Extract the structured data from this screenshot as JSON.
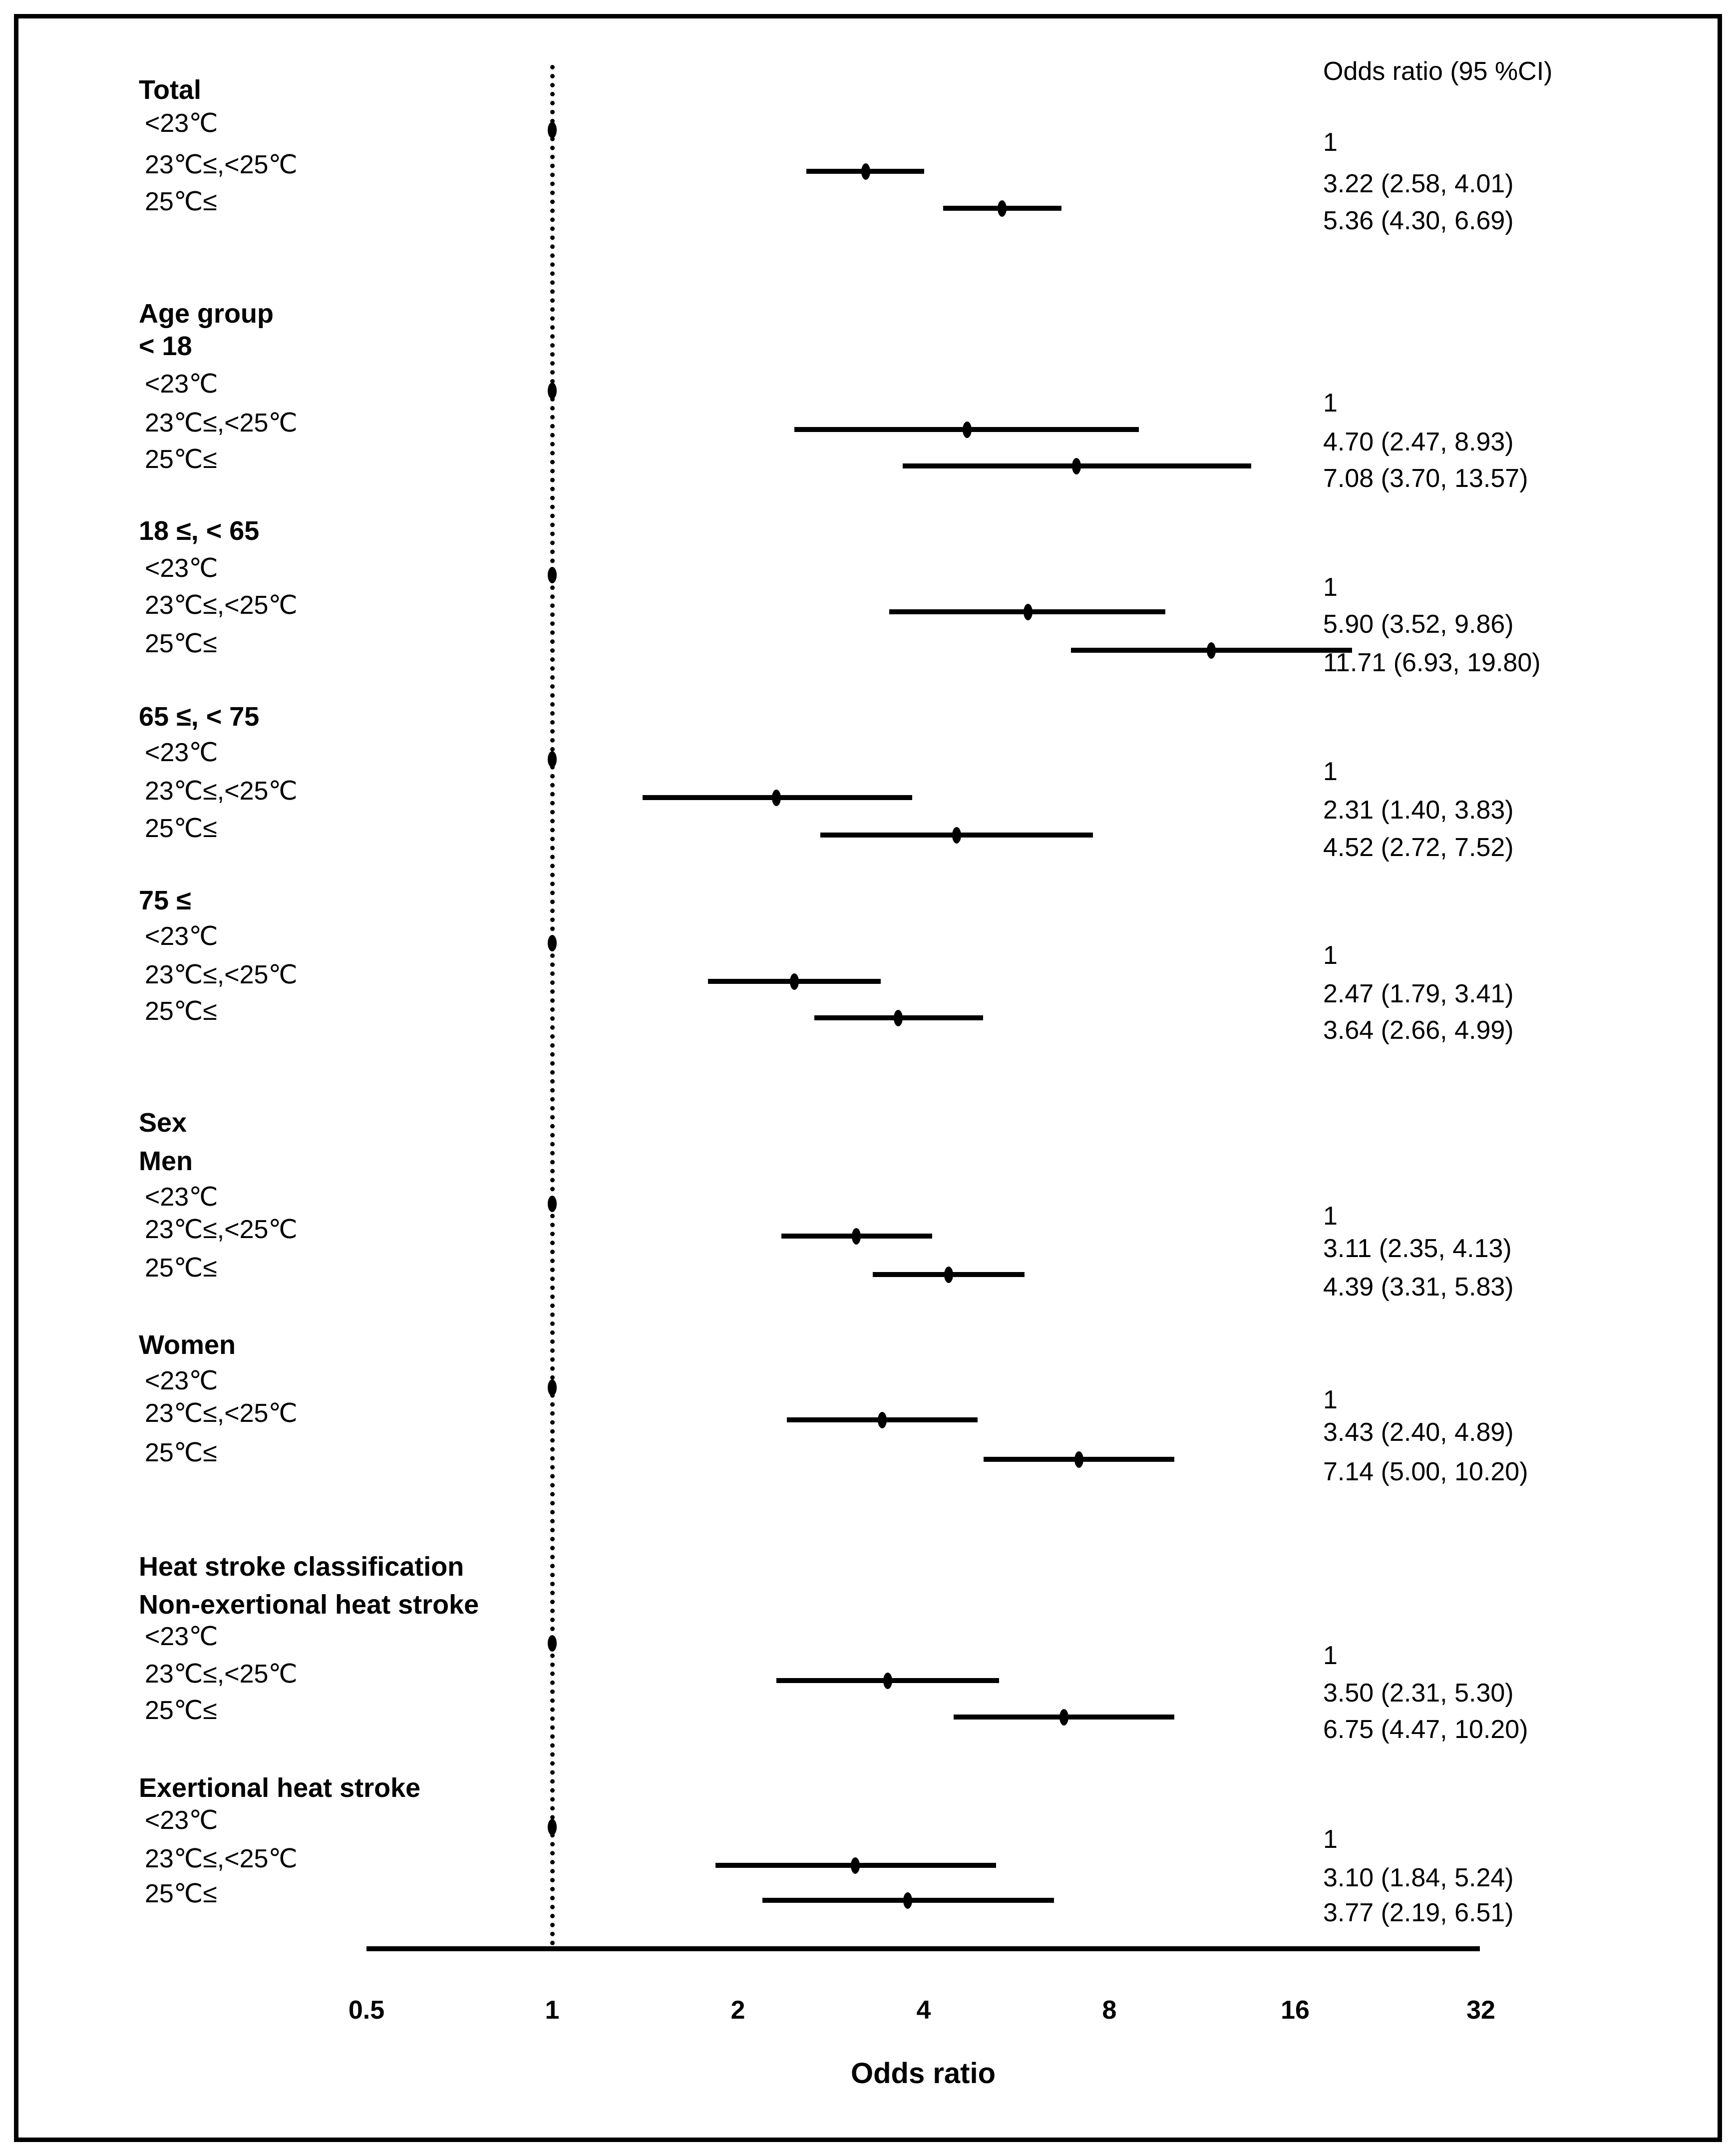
{
  "colors": {
    "ink": "#000000",
    "background": "#ffffff"
  },
  "chart_data": {
    "type": "scatter",
    "subtype": "forest-plot",
    "title": "",
    "xlabel": "Odds ratio",
    "value_column_header": "Odds ratio (95 %CI)",
    "x_scale": "log2",
    "x_ticks": [
      0.5,
      1,
      2,
      4,
      8,
      16,
      32
    ],
    "x_range": [
      0.5,
      32
    ],
    "reference_line_x": 1,
    "legend_position": "none",
    "grid": false,
    "groups": [
      {
        "headers": [
          {
            "text": "Total",
            "y": 180
          }
        ],
        "rows": [
          {
            "label": "<23℃",
            "or_text": "1",
            "est": 1,
            "lo": null,
            "hi": null,
            "vy": 285
          },
          {
            "label": "23℃≤,<25℃",
            "or_text": "3.22 (2.58, 4.01)",
            "est": 3.22,
            "lo": 2.58,
            "hi": 4.01,
            "vy": 368
          },
          {
            "label": "25℃≤",
            "or_text": "5.36 (4.30, 6.69)",
            "est": 5.36,
            "lo": 4.3,
            "hi": 6.69,
            "vy": 442
          }
        ]
      },
      {
        "headers": [
          {
            "text": "Age group",
            "y": 628
          },
          {
            "text": "< 18",
            "y": 693
          }
        ],
        "rows": [
          {
            "label": "<23℃",
            "or_text": "1",
            "est": 1,
            "lo": null,
            "hi": null,
            "vy": 807
          },
          {
            "label": "23℃≤,<25℃",
            "or_text": "4.70 (2.47, 8.93)",
            "est": 4.7,
            "lo": 2.47,
            "hi": 8.93,
            "vy": 885
          },
          {
            "label": "25℃≤",
            "or_text": "7.08 (3.70, 13.57)",
            "est": 7.08,
            "lo": 3.7,
            "hi": 13.57,
            "vy": 958
          }
        ]
      },
      {
        "headers": [
          {
            "text": "18 ≤, < 65",
            "y": 1063
          }
        ],
        "rows": [
          {
            "label": "<23℃",
            "or_text": "1",
            "est": 1,
            "lo": null,
            "hi": null,
            "vy": 1176
          },
          {
            "label": "23℃≤,<25℃",
            "or_text": "5.90 (3.52, 9.86)",
            "est": 5.9,
            "lo": 3.52,
            "hi": 9.86,
            "vy": 1250
          },
          {
            "label": "25℃≤",
            "or_text": "11.71 (6.93, 19.80)",
            "est": 11.71,
            "lo": 6.93,
            "hi": 19.8,
            "vy": 1327
          }
        ]
      },
      {
        "headers": [
          {
            "text": "65 ≤, < 75",
            "y": 1435
          }
        ],
        "rows": [
          {
            "label": "<23℃",
            "or_text": "1",
            "est": 1,
            "lo": null,
            "hi": null,
            "vy": 1545
          },
          {
            "label": "23℃≤,<25℃",
            "or_text": "2.31 (1.40, 3.83)",
            "est": 2.31,
            "lo": 1.4,
            "hi": 3.83,
            "vy": 1622
          },
          {
            "label": "25℃≤",
            "or_text": "4.52 (2.72, 7.52)",
            "est": 4.52,
            "lo": 2.72,
            "hi": 7.52,
            "vy": 1697
          }
        ]
      },
      {
        "headers": [
          {
            "text": "75 ≤",
            "y": 1803
          }
        ],
        "rows": [
          {
            "label": "<23℃",
            "or_text": "1",
            "est": 1,
            "lo": null,
            "hi": null,
            "vy": 1913
          },
          {
            "label": "23℃≤,<25℃",
            "or_text": "2.47 (1.79, 3.41)",
            "est": 2.47,
            "lo": 1.79,
            "hi": 3.41,
            "vy": 1990
          },
          {
            "label": "25℃≤",
            "or_text": "3.64 (2.66, 4.99)",
            "est": 3.64,
            "lo": 2.66,
            "hi": 4.99,
            "vy": 2063
          }
        ]
      },
      {
        "headers": [
          {
            "text": "Sex",
            "y": 2248
          },
          {
            "text": "Men",
            "y": 2325
          }
        ],
        "rows": [
          {
            "label": "<23℃",
            "or_text": "1",
            "est": 1,
            "lo": null,
            "hi": null,
            "vy": 2435
          },
          {
            "label": "23℃≤,<25℃",
            "or_text": "3.11 (2.35, 4.13)",
            "est": 3.11,
            "lo": 2.35,
            "hi": 4.13,
            "vy": 2500
          },
          {
            "label": "25℃≤",
            "or_text": "4.39 (3.31, 5.83)",
            "est": 4.39,
            "lo": 3.31,
            "hi": 5.83,
            "vy": 2577
          }
        ]
      },
      {
        "headers": [
          {
            "text": "Women",
            "y": 2693
          }
        ],
        "rows": [
          {
            "label": "<23℃",
            "or_text": "1",
            "est": 1,
            "lo": null,
            "hi": null,
            "vy": 2803
          },
          {
            "label": "23℃≤,<25℃",
            "or_text": "3.43 (2.40, 4.89)",
            "est": 3.43,
            "lo": 2.4,
            "hi": 4.89,
            "vy": 2868
          },
          {
            "label": "25℃≤",
            "or_text": "7.14 (5.00, 10.20)",
            "est": 7.14,
            "lo": 5.0,
            "hi": 10.2,
            "vy": 2947
          }
        ]
      },
      {
        "headers": [
          {
            "text": "Heat stroke classification",
            "y": 3137
          },
          {
            "text": "Non-exertional heat stroke",
            "y": 3213
          }
        ],
        "rows": [
          {
            "label": "<23℃",
            "or_text": "1",
            "est": 1,
            "lo": null,
            "hi": null,
            "vy": 3315
          },
          {
            "label": "23℃≤,<25℃",
            "or_text": "3.50 (2.31, 5.30)",
            "est": 3.5,
            "lo": 2.31,
            "hi": 5.3,
            "vy": 3390
          },
          {
            "label": "25℃≤",
            "or_text": "6.75 (4.47, 10.20)",
            "est": 6.75,
            "lo": 4.47,
            "hi": 10.2,
            "vy": 3463
          }
        ]
      },
      {
        "headers": [
          {
            "text": "Exertional heat stroke",
            "y": 3580
          }
        ],
        "rows": [
          {
            "label": "<23℃",
            "or_text": "1",
            "est": 1,
            "lo": null,
            "hi": null,
            "vy": 3683
          },
          {
            "label": "23℃≤,<25℃",
            "or_text": "3.10 (1.84, 5.24)",
            "est": 3.1,
            "lo": 1.84,
            "hi": 5.24,
            "vy": 3760
          },
          {
            "label": "25℃≤",
            "or_text": "3.77 (2.19, 6.51)",
            "est": 3.77,
            "lo": 2.19,
            "hi": 6.51,
            "vy": 3830
          }
        ]
      }
    ]
  }
}
